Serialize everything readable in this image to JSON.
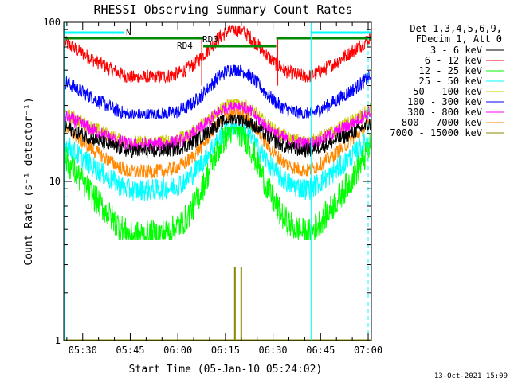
{
  "chart_data": {
    "type": "line",
    "title": "RHESSI Observing Summary Count Rates",
    "xlabel": "Start Time (05-Jan-10 05:24:02)",
    "ylabel": "Count Rate (s⁻¹ detector⁻¹)",
    "yscale": "log",
    "ylim": [
      1,
      100
    ],
    "xlim": [
      "05:24:02",
      "07:01:00"
    ],
    "x_ticks": [
      "05:30",
      "05:45",
      "06:00",
      "06:15",
      "06:30",
      "06:45",
      "07:00"
    ],
    "y_ticks": [
      "1",
      "10",
      "100"
    ],
    "legend_header": [
      "Det 1,3,4,5,6,9,",
      "FDecim 1, Att 0"
    ],
    "legend_position": "top-right",
    "timestamp": "13-Oct-2021 15:09",
    "series": [
      {
        "name": "3 - 6 keV",
        "color": "#000000",
        "min": 11.8,
        "max": 25,
        "base": 15.5
      },
      {
        "name": "6 - 12 keV",
        "color": "#ff0000",
        "min": 42,
        "max": 90,
        "base": 45
      },
      {
        "name": "12 - 25 keV",
        "color": "#00ff00",
        "min": 4.3,
        "max": 21,
        "base": 4.6
      },
      {
        "name": "25 - 50 keV",
        "color": "#00ffff",
        "min": 7.2,
        "max": 22,
        "base": 8.8
      },
      {
        "name": "50 - 100 keV",
        "color": "#cccc00",
        "min": 16,
        "max": 31,
        "base": 17.5
      },
      {
        "name": "100 - 300 keV",
        "color": "#0000ff",
        "min": 25,
        "max": 51,
        "base": 26
      },
      {
        "name": "300 - 800 keV",
        "color": "#ff00ff",
        "min": 15,
        "max": 30,
        "base": 17
      },
      {
        "name": "800 - 7000 keV",
        "color": "#ff8800",
        "min": 10,
        "max": 27,
        "base": 11.5
      },
      {
        "name": "7000 - 15000 keV",
        "color": "#888800",
        "spikes": [
          {
            "t": "06:18",
            "value": 2.9
          },
          {
            "t": "06:20",
            "value": 2.9
          }
        ]
      }
    ],
    "annotations": {
      "rd_labels": [
        {
          "text": "RD0",
          "color": "#008800"
        },
        {
          "text": "RD4",
          "color": "#008800"
        }
      ],
      "n_label": {
        "text": "N",
        "color": "#00ffff"
      },
      "night_intervals": [
        [
          "05:24:02",
          "05:43:00"
        ],
        [
          "06:42:00",
          "07:01:00"
        ]
      ],
      "rd0_intervals": [
        [
          "05:24:02",
          "06:08:00"
        ],
        [
          "06:31:00",
          "07:01:00"
        ]
      ],
      "rd4_interval": [
        "06:08:00",
        "06:31:00"
      ],
      "dashed_markers": [
        "05:43:00",
        "07:00:00"
      ],
      "solid_markers": [
        "05:24:02",
        "06:42:00"
      ]
    }
  }
}
